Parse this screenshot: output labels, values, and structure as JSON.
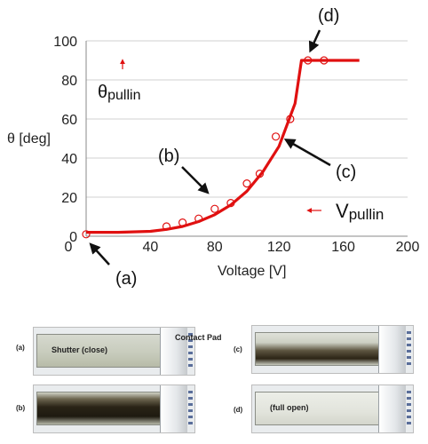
{
  "chart_data": {
    "type": "line",
    "xlabel": "Voltage [V]",
    "ylabel": "θ [deg]",
    "xlim": [
      0,
      200
    ],
    "ylim": [
      0,
      100
    ],
    "xticks": [
      "0",
      "40",
      "80",
      "120",
      "160",
      "200"
    ],
    "yticks": [
      "0",
      "20",
      "40",
      "60",
      "80",
      "100"
    ],
    "series": [
      {
        "style": "line",
        "color": "#e01010",
        "x": [
          0,
          20,
          40,
          50,
          60,
          70,
          80,
          90,
          100,
          110,
          120,
          130,
          134,
          170
        ],
        "y": [
          2,
          2,
          2.5,
          3.5,
          5,
          7.5,
          11,
          16,
          23,
          33,
          46,
          68,
          90,
          90
        ]
      },
      {
        "style": "markers",
        "marker": "open-circle",
        "color": "#e01010",
        "x": [
          0,
          50,
          60,
          70,
          80,
          90,
          100,
          108,
          118,
          127,
          138,
          148
        ],
        "y": [
          1,
          5,
          7,
          9,
          14,
          17,
          27,
          32,
          51,
          60,
          90,
          90
        ]
      }
    ],
    "annotations": {
      "a": "(a)",
      "b": "(b)",
      "c": "(c)",
      "d": "(d)",
      "theta_pullin": "θ",
      "theta_pullin_sub": "pullin",
      "v_pullin": "V",
      "v_pullin_sub": "pullin"
    }
  },
  "photos": {
    "a_label": "(a)",
    "a_caption": "Shutter (close)",
    "b_label": "(b)",
    "c_label": "(c)",
    "d_label": "(d)",
    "d_caption": "(full open)",
    "contact_pad": "Contact Pad"
  }
}
